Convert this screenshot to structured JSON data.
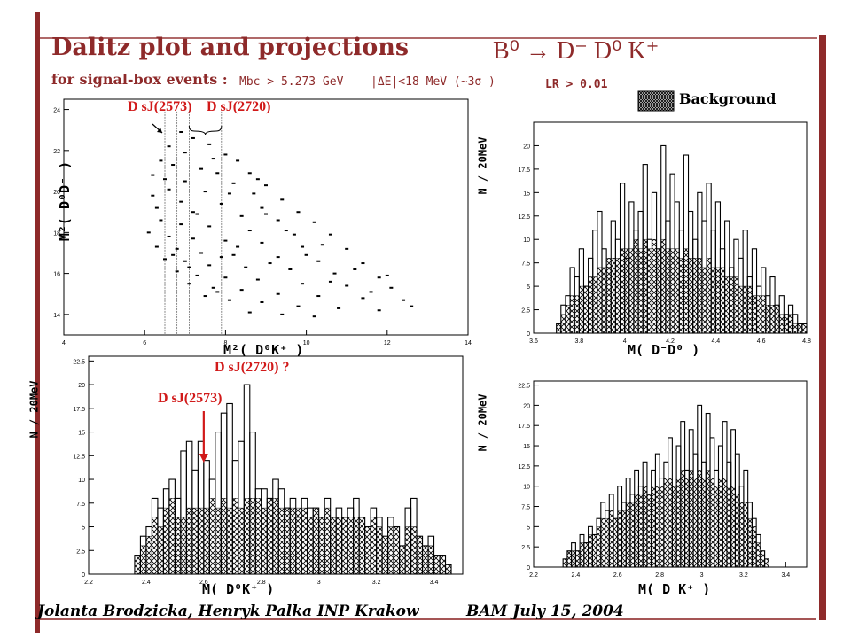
{
  "slide": {
    "title": "Dalitz plot and projections",
    "reaction": "B⁰ → D⁻ D⁰ K⁺",
    "subtitle": "for signal-box events :",
    "cut_mbc": "Mbc > 5.273 GeV",
    "cut_de": "|ΔE|<18 MeV (~3σ )",
    "cut_lr": "LR > 0.01",
    "legend_background": "Background",
    "footer_authors": "Jolanta Brodzicka, Henryk Palka INP Krakow",
    "footer_event": "BAM   July 15, 2004",
    "accent_color": "#8e2a2a",
    "annotation_color": "#d11a1a"
  },
  "chart_data": [
    {
      "id": "dalitz",
      "type": "scatter",
      "xlabel": "M²( D⁰K⁺ )",
      "ylabel": "M²( D⁰D⁻ )",
      "xlim": [
        4,
        14
      ],
      "ylim": [
        13,
        24.5
      ],
      "xticks": [
        4,
        6,
        8,
        10,
        12,
        14
      ],
      "yticks": [
        14,
        16,
        18,
        20,
        22,
        24
      ],
      "band_lines_x": [
        6.5,
        6.8,
        7.1,
        7.9
      ],
      "annotations": [
        "D sJ(2573)",
        "D sJ(2720)"
      ],
      "points": [
        [
          6.9,
          22.9
        ],
        [
          7.2,
          22.6
        ],
        [
          7.6,
          22.3
        ],
        [
          6.6,
          22.2
        ],
        [
          7.0,
          21.9
        ],
        [
          8.0,
          21.8
        ],
        [
          8.3,
          21.5
        ],
        [
          6.4,
          21.5
        ],
        [
          6.7,
          21.3
        ],
        [
          7.4,
          21.1
        ],
        [
          7.8,
          20.9
        ],
        [
          8.6,
          20.9
        ],
        [
          6.5,
          20.6
        ],
        [
          7.0,
          20.5
        ],
        [
          8.2,
          20.4
        ],
        [
          9.0,
          20.3
        ],
        [
          6.6,
          20.1
        ],
        [
          7.5,
          20.0
        ],
        [
          8.7,
          19.9
        ],
        [
          9.4,
          19.6
        ],
        [
          6.2,
          19.8
        ],
        [
          6.9,
          19.5
        ],
        [
          7.9,
          19.4
        ],
        [
          8.9,
          19.2
        ],
        [
          9.8,
          19.0
        ],
        [
          6.3,
          19.2
        ],
        [
          7.2,
          19.0
        ],
        [
          8.4,
          18.8
        ],
        [
          9.3,
          18.6
        ],
        [
          10.2,
          18.5
        ],
        [
          6.4,
          18.6
        ],
        [
          6.9,
          18.4
        ],
        [
          7.6,
          18.3
        ],
        [
          8.6,
          18.1
        ],
        [
          9.7,
          17.9
        ],
        [
          10.6,
          17.9
        ],
        [
          6.1,
          18.0
        ],
        [
          6.6,
          17.8
        ],
        [
          7.2,
          17.7
        ],
        [
          8.0,
          17.6
        ],
        [
          8.9,
          17.5
        ],
        [
          9.9,
          17.3
        ],
        [
          11.0,
          17.2
        ],
        [
          6.3,
          17.3
        ],
        [
          6.8,
          17.2
        ],
        [
          7.4,
          17.0
        ],
        [
          8.2,
          16.9
        ],
        [
          9.3,
          16.8
        ],
        [
          10.3,
          16.6
        ],
        [
          11.4,
          16.5
        ],
        [
          6.5,
          16.7
        ],
        [
          7.0,
          16.6
        ],
        [
          7.6,
          16.4
        ],
        [
          8.5,
          16.3
        ],
        [
          9.6,
          16.2
        ],
        [
          10.7,
          16.0
        ],
        [
          11.8,
          15.8
        ],
        [
          6.8,
          16.1
        ],
        [
          7.3,
          15.9
        ],
        [
          8.0,
          15.8
        ],
        [
          8.8,
          15.7
        ],
        [
          9.9,
          15.5
        ],
        [
          11.0,
          15.4
        ],
        [
          12.1,
          15.3
        ],
        [
          7.1,
          15.5
        ],
        [
          7.7,
          15.3
        ],
        [
          8.4,
          15.2
        ],
        [
          9.3,
          15.0
        ],
        [
          10.3,
          14.9
        ],
        [
          11.4,
          14.8
        ],
        [
          12.4,
          14.7
        ],
        [
          7.5,
          14.9
        ],
        [
          8.1,
          14.7
        ],
        [
          8.9,
          14.6
        ],
        [
          9.8,
          14.4
        ],
        [
          10.8,
          14.3
        ],
        [
          11.8,
          14.2
        ],
        [
          8.6,
          14.1
        ],
        [
          9.4,
          14.0
        ],
        [
          10.2,
          13.9
        ],
        [
          7.3,
          18.9
        ],
        [
          8.1,
          19.9
        ],
        [
          8.8,
          20.6
        ],
        [
          7.7,
          21.6
        ],
        [
          9.5,
          18.1
        ],
        [
          10.4,
          17.4
        ],
        [
          11.2,
          16.2
        ],
        [
          12.0,
          15.9
        ],
        [
          10.6,
          15.6
        ],
        [
          9.1,
          16.5
        ],
        [
          7.9,
          16.8
        ],
        [
          7.1,
          16.3
        ],
        [
          6.7,
          16.9
        ],
        [
          7.8,
          15.1
        ],
        [
          8.3,
          17.3
        ],
        [
          9.0,
          18.9
        ],
        [
          10.0,
          16.9
        ],
        [
          11.6,
          15.1
        ],
        [
          12.6,
          14.4
        ],
        [
          6.2,
          20.8
        ]
      ]
    },
    {
      "id": "m_dbar_d0",
      "type": "bar",
      "xlabel": "M( D⁻D⁰ )",
      "ylabel": "N / 20MeV",
      "xlim": [
        3.6,
        4.8
      ],
      "ylim": [
        0,
        22.5
      ],
      "xticks": [
        3.6,
        3.8,
        4.0,
        4.2,
        4.4,
        4.6,
        4.8
      ],
      "yticks": [
        0,
        2.5,
        5,
        7.5,
        10,
        12.5,
        15,
        17.5,
        20
      ],
      "bin_start": 3.7,
      "bin_width": 0.02,
      "values": [
        1,
        3,
        4,
        7,
        6,
        9,
        5,
        8,
        11,
        13,
        9,
        7,
        12,
        10,
        16,
        8,
        14,
        11,
        13,
        18,
        10,
        15,
        9,
        20,
        12,
        17,
        14,
        11,
        19,
        13,
        10,
        15,
        12,
        16,
        11,
        14,
        9,
        12,
        7,
        10,
        8,
        11,
        6,
        9,
        5,
        7,
        4,
        6,
        3,
        4,
        2,
        3,
        2,
        1,
        1
      ],
      "background": [
        1,
        2,
        3,
        4,
        4,
        5,
        5,
        6,
        6,
        7,
        7,
        8,
        8,
        8,
        9,
        9,
        9,
        10,
        9,
        10,
        9,
        10,
        9,
        10,
        9,
        9,
        9,
        8,
        9,
        8,
        8,
        8,
        7,
        8,
        7,
        7,
        7,
        6,
        6,
        6,
        5,
        5,
        5,
        4,
        4,
        4,
        3,
        3,
        3,
        2,
        2,
        2,
        1,
        1,
        1
      ]
    },
    {
      "id": "m_d0_kplus",
      "type": "bar",
      "xlabel": "M( D⁰K⁺ )",
      "ylabel": "N / 20MeV",
      "xlim": [
        2.2,
        3.5
      ],
      "ylim": [
        0,
        23
      ],
      "xticks": [
        2.2,
        2.4,
        2.6,
        2.8,
        3.0,
        3.2,
        3.4
      ],
      "yticks": [
        0,
        2.5,
        5,
        7.5,
        10,
        12.5,
        15,
        17.5,
        20,
        22.5
      ],
      "bin_start": 2.36,
      "bin_width": 0.02,
      "values": [
        2,
        4,
        5,
        8,
        7,
        9,
        10,
        8,
        13,
        14,
        11,
        14,
        12,
        10,
        15,
        17,
        18,
        12,
        14,
        20,
        15,
        9,
        9,
        8,
        10,
        9,
        7,
        8,
        6,
        8,
        7,
        7,
        6,
        8,
        6,
        7,
        6,
        7,
        8,
        6,
        5,
        7,
        6,
        4,
        6,
        5,
        3,
        7,
        8,
        4,
        3,
        4,
        2,
        2,
        1
      ],
      "background": [
        2,
        3,
        4,
        6,
        5,
        7,
        8,
        6,
        6,
        7,
        7,
        7,
        7,
        8,
        7,
        8,
        7,
        8,
        7,
        8,
        8,
        8,
        7,
        8,
        8,
        7,
        7,
        7,
        7,
        7,
        6,
        7,
        6,
        7,
        6,
        6,
        6,
        6,
        6,
        6,
        5,
        6,
        5,
        4,
        5,
        5,
        3,
        5,
        5,
        4,
        3,
        3,
        2,
        2,
        1
      ],
      "annotations": [
        "D sJ(2573)",
        "D sJ(2720) ?"
      ],
      "arrow_x": 2.6
    },
    {
      "id": "m_dbar_kplus",
      "type": "bar",
      "xlabel": "M( D⁻K⁺ )",
      "ylabel": "N / 20MeV",
      "xlim": [
        2.2,
        3.5
      ],
      "ylim": [
        0,
        23
      ],
      "xticks": [
        2.2,
        2.4,
        2.6,
        2.8,
        3.0,
        3.2,
        3.4
      ],
      "yticks": [
        0,
        2.5,
        5,
        7.5,
        10,
        12.5,
        15,
        17.5,
        20,
        22.5
      ],
      "bin_start": 2.34,
      "bin_width": 0.02,
      "values": [
        1,
        2,
        3,
        2,
        4,
        3,
        5,
        4,
        6,
        8,
        7,
        9,
        6,
        10,
        8,
        11,
        9,
        12,
        10,
        13,
        9,
        12,
        14,
        11,
        13,
        16,
        10,
        15,
        18,
        12,
        17,
        14,
        20,
        13,
        19,
        16,
        12,
        15,
        18,
        13,
        17,
        14,
        10,
        12,
        8,
        6,
        4,
        2,
        1
      ],
      "background": [
        1,
        2,
        2,
        2,
        3,
        3,
        4,
        4,
        5,
        6,
        6,
        7,
        6,
        7,
        7,
        8,
        8,
        9,
        9,
        10,
        9,
        10,
        10,
        10,
        11,
        11,
        10,
        11,
        12,
        11,
        12,
        11,
        12,
        11,
        12,
        11,
        10,
        11,
        11,
        10,
        10,
        9,
        8,
        8,
        6,
        5,
        3,
        2,
        1
      ]
    }
  ]
}
